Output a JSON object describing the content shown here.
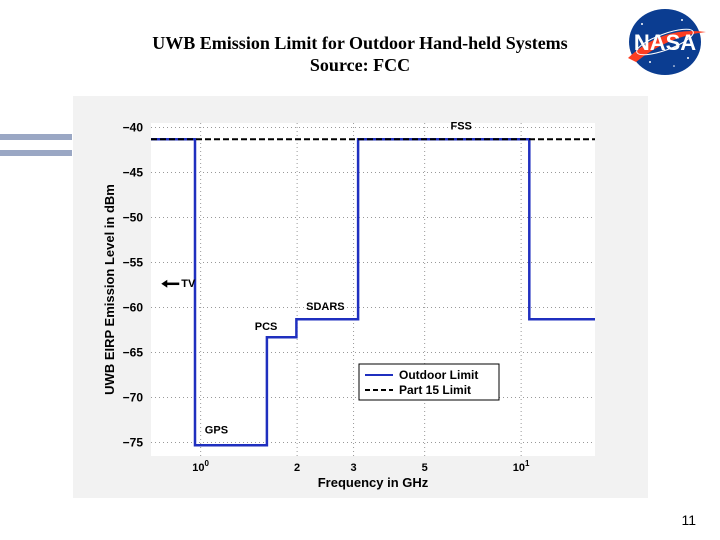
{
  "slide": {
    "title_line1": "UWB Emission Limit for Outdoor Hand-held Systems",
    "title_line2": "Source: FCC",
    "logo_text": "NASA",
    "page_number": "11"
  },
  "colors": {
    "outdoor_limit": "#1f2fbf",
    "part15_limit": "#000000",
    "logo_blue": "#0b3d91",
    "logo_red": "#fc3d21"
  },
  "chart_data": {
    "type": "line",
    "xlabel": "Frequency in GHz",
    "ylabel": "UWB EIRP Emission Level in dBm",
    "x_scale": "log",
    "xlim": [
      0.7,
      17
    ],
    "ylim": [
      -76.5,
      -39.5
    ],
    "x_ticks": [
      {
        "value": 1,
        "label": "10",
        "sup": "0"
      },
      {
        "value": 2,
        "label": "2",
        "sup": ""
      },
      {
        "value": 3,
        "label": "3",
        "sup": ""
      },
      {
        "value": 5,
        "label": "5",
        "sup": ""
      },
      {
        "value": 10,
        "label": "10",
        "sup": "1"
      }
    ],
    "y_ticks": [
      -40,
      -45,
      -50,
      -55,
      -60,
      -65,
      -70,
      -75
    ],
    "grid": true,
    "legend": {
      "position": "lower-right",
      "items": [
        {
          "label": "Outdoor Limit",
          "style": "solid"
        },
        {
          "label": "Part 15 Limit",
          "style": "dashed"
        }
      ]
    },
    "series": [
      {
        "name": "Outdoor Limit",
        "style": "solid",
        "points": [
          [
            0.7,
            -41.3
          ],
          [
            0.96,
            -41.3
          ],
          [
            0.96,
            -75.3
          ],
          [
            1.61,
            -75.3
          ],
          [
            1.61,
            -63.3
          ],
          [
            1.99,
            -63.3
          ],
          [
            1.99,
            -61.3
          ],
          [
            3.1,
            -61.3
          ],
          [
            3.1,
            -41.3
          ],
          [
            10.6,
            -41.3
          ],
          [
            10.6,
            -61.3
          ],
          [
            17,
            -61.3
          ]
        ]
      },
      {
        "name": "Part 15 Limit",
        "style": "dashed",
        "points": [
          [
            0.7,
            -41.3
          ],
          [
            17,
            -41.3
          ]
        ]
      }
    ],
    "annotations": [
      {
        "text": "FSS",
        "x": 6.5,
        "y": -40.2
      },
      {
        "text": "TV",
        "x": 0.77,
        "y": -57.7,
        "arrow": true
      },
      {
        "text": "SDARS",
        "x": 2.45,
        "y": -60.3
      },
      {
        "text": "PCS",
        "x": 1.6,
        "y": -62.5
      },
      {
        "text": "GPS",
        "x": 1.12,
        "y": -74.0
      }
    ]
  }
}
